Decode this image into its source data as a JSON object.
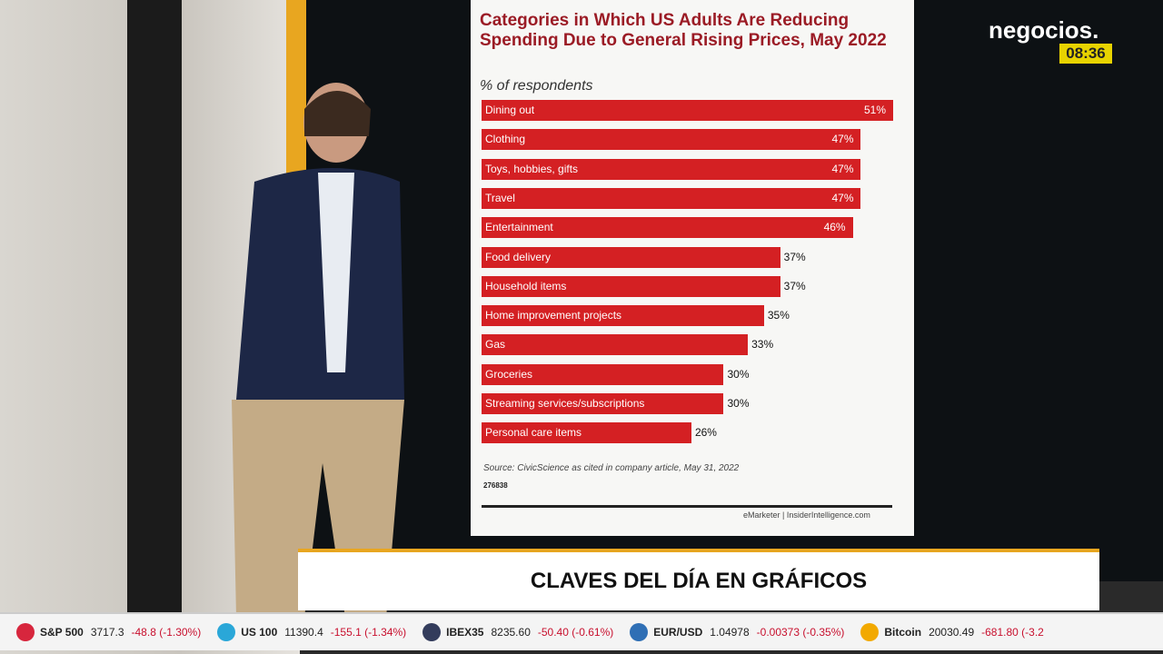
{
  "chart_data": {
    "type": "bar",
    "orientation": "horizontal",
    "title": "Categories in Which US Adults Are Reducing Spending Due to General Rising Prices, May 2022",
    "subtitle": "% of respondents",
    "categories": [
      "Dining out",
      "Clothing",
      "Toys, hobbies, gifts",
      "Travel",
      "Entertainment",
      "Food delivery",
      "Household items",
      "Home improvement projects",
      "Gas",
      "Groceries",
      "Streaming services/subscriptions",
      "Personal care items"
    ],
    "values": [
      51,
      47,
      47,
      47,
      46,
      37,
      37,
      35,
      33,
      30,
      30,
      26
    ],
    "value_labels": [
      "51%",
      "47%",
      "47%",
      "47%",
      "46%",
      "37%",
      "37%",
      "35%",
      "33%",
      "30%",
      "30%",
      "26%"
    ],
    "color": "#d42023",
    "source": "Source: CivicScience as cited in company article, May 31, 2022",
    "chart_id": "276838",
    "credit": "eMarketer | InsiderIntelligence.com"
  },
  "channel": {
    "logo": "negocios.",
    "time": "08:36"
  },
  "banner": "CLAVES DEL DÍA EN GRÁFICOS",
  "ticker": [
    {
      "symbol": "S&P 500",
      "price": "3717.3",
      "change": "-48.8 (-1.30%)",
      "color": "#d7263d"
    },
    {
      "symbol": "US 100",
      "price": "11390.4",
      "change": "-155.1 (-1.34%)",
      "color": "#2aa7d8"
    },
    {
      "symbol": "IBEX35",
      "price": "8235.60",
      "change": "-50.40 (-0.61%)",
      "color": "#333c5c"
    },
    {
      "symbol": "EUR/USD",
      "price": "1.04978",
      "change": "-0.00373 (-0.35%)",
      "color": "#2f6fb5"
    },
    {
      "symbol": "Bitcoin",
      "price": "20030.49",
      "change": "-681.80 (-3.2",
      "color": "#f2a900"
    }
  ]
}
